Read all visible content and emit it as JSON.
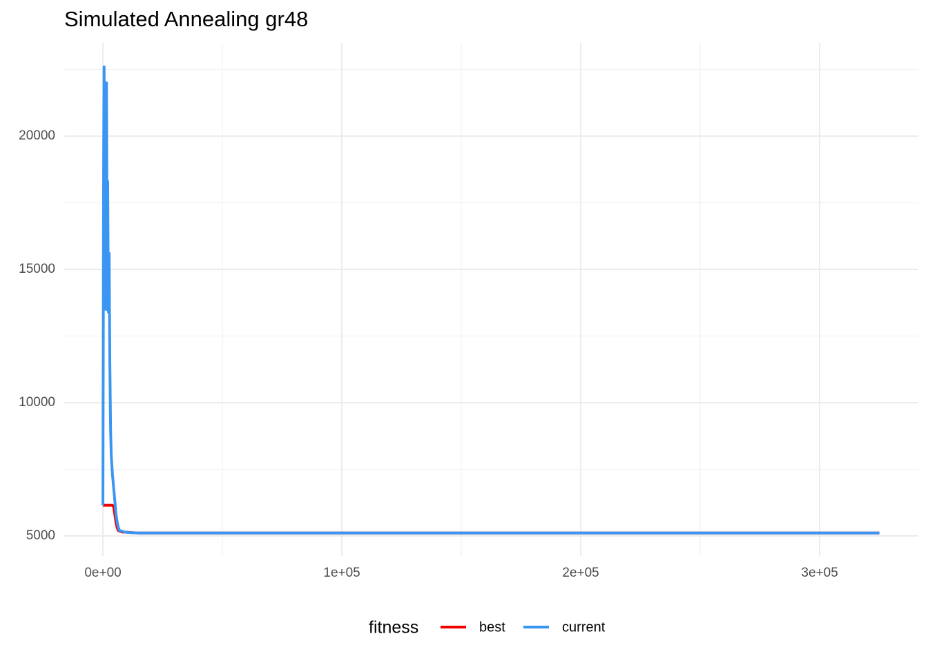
{
  "chart_data": {
    "type": "line",
    "title": "Simulated Annealing gr48",
    "xlim": [
      -16200,
      341300
    ],
    "ylim": [
      4250,
      23500
    ],
    "xticks": [
      {
        "value": 0,
        "label": "0e+00"
      },
      {
        "value": 100000,
        "label": "1e+05"
      },
      {
        "value": 200000,
        "label": "2e+05"
      },
      {
        "value": 300000,
        "label": "3e+05"
      }
    ],
    "yticks": [
      5000,
      10000,
      15000,
      20000
    ],
    "x_minor_grid": [
      50000,
      150000,
      250000
    ],
    "y_minor_grid": [
      7500,
      12500,
      17500,
      22500
    ],
    "grid": true,
    "legend_title": "fitness",
    "legend_position": "bottom",
    "series": [
      {
        "name": "best",
        "color": "#f00000",
        "x": [
          0,
          4000,
          4500,
          5000,
          5500,
          6000,
          6500,
          7000,
          8000,
          10000,
          15000,
          325000
        ],
        "values": [
          6150,
          6150,
          6100,
          5800,
          5500,
          5300,
          5200,
          5180,
          5150,
          5140,
          5110,
          5110
        ]
      },
      {
        "name": "current",
        "color": "#3a96f2",
        "x": [
          0,
          300,
          500,
          800,
          1000,
          1300,
          1500,
          1800,
          2000,
          2300,
          2600,
          2900,
          3200,
          3500,
          4000,
          4500,
          5000,
          5500,
          6000,
          6500,
          7000,
          8000,
          9000,
          10000,
          12000,
          15000,
          50000,
          100000,
          200000,
          325000
        ],
        "values": [
          6150,
          19000,
          22600,
          15600,
          22000,
          13500,
          22000,
          15000,
          18300,
          13400,
          15600,
          11500,
          9000,
          8000,
          7300,
          6800,
          6300,
          5800,
          5500,
          5300,
          5200,
          5180,
          5150,
          5140,
          5120,
          5110,
          5110,
          5110,
          5110,
          5110
        ]
      }
    ]
  }
}
